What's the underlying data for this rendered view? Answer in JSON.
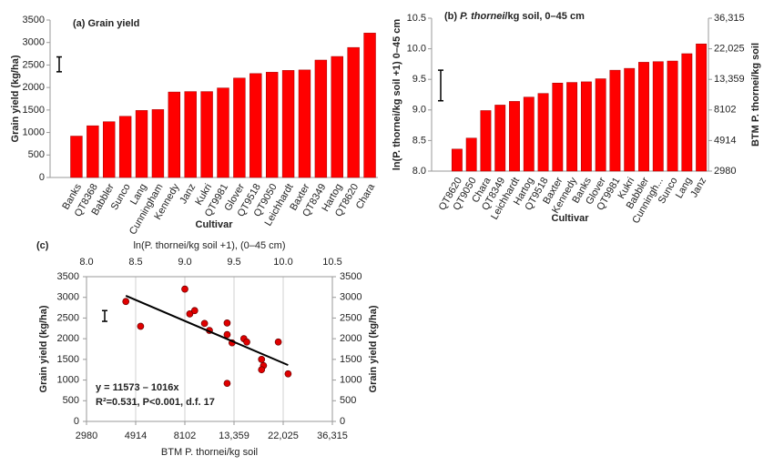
{
  "chart_data": [
    {
      "type": "bar",
      "title": "(a) Grain yield",
      "ylabel": "Grain yield (kg/ha)",
      "xlabel": "Cultivar",
      "categories": [
        "Banks",
        "QT8368",
        "Babbler",
        "Sunco",
        "Lang",
        "Cunningham",
        "Kennedy",
        "Janz",
        "Kukri",
        "QT9981",
        "Glover",
        "QT9518",
        "QT9050",
        "Leichhardt",
        "Baxter",
        "QT8349",
        "Hartog",
        "QT8620",
        "Chara"
      ],
      "values": [
        920,
        1150,
        1240,
        1360,
        1490,
        1510,
        1900,
        1910,
        1910,
        1990,
        2210,
        2310,
        2340,
        2380,
        2390,
        2610,
        2690,
        2890,
        3210
      ],
      "color": "#ff0000",
      "ylim": [
        0,
        3500
      ],
      "yticks": [
        0,
        500,
        1000,
        1500,
        2000,
        2500,
        3000,
        3500
      ],
      "error_bar": {
        "y": 2515,
        "half_length": 165
      }
    },
    {
      "type": "bar",
      "title": {
        "prefix": "(b) ",
        "italic": "P. thornei",
        "suffix": "/kg soil, 0–45 cm"
      },
      "ylabel": "ln(P. thornei/kg soil +1)  0–45 cm",
      "y2label": "BTM P. thornei/kg soil",
      "xlabel": "Cultivar",
      "categories": [
        "QT8620",
        "QT9050",
        "Chara",
        "QT8349",
        "Leichhardt",
        "Hartog",
        "QT9518",
        "Baxter",
        "Kennedy",
        "Banks",
        "Glover",
        "QT9981",
        "Kukri",
        "Babbler",
        "Cunningh...",
        "Sunco",
        "Lang",
        "Janz"
      ],
      "values": [
        8.36,
        8.54,
        8.99,
        9.08,
        9.14,
        9.21,
        9.27,
        9.44,
        9.45,
        9.46,
        9.51,
        9.65,
        9.68,
        9.78,
        9.79,
        9.8,
        9.92,
        10.08
      ],
      "color": "#ff0000",
      "ylim": [
        8,
        10.5
      ],
      "yticks": [
        {
          "value": 8,
          "label": "8.0"
        },
        {
          "value": 8.5,
          "label": "8.5"
        },
        {
          "value": 9,
          "label": "9.0"
        },
        {
          "value": 9.5,
          "label": "9.5"
        },
        {
          "value": 10,
          "label": "10.0"
        },
        {
          "value": 10.5,
          "label": "10.5"
        }
      ],
      "y2scale": "log",
      "y2lim": [
        2980,
        36315
      ],
      "y2ticks": [
        2980,
        4914,
        8102,
        {
          "value": 13359,
          "label": "13,359"
        },
        {
          "value": 22025,
          "label": "22,025"
        },
        {
          "value": 36315,
          "label": "36,315"
        }
      ],
      "error_bar": {
        "y": 9.4,
        "half_length": 0.25
      }
    },
    {
      "type": "scatter",
      "panel_label": "(c)",
      "xlabel": "ln(P. thornei/kg soil +1), (0–45 cm)",
      "x2label": "BTM P. thornei/kg soil",
      "ylabel": "Grain yield (kg/ha)",
      "y2label": "Grain yield (kg/ha)",
      "x": [
        8.4,
        8.55,
        9.0,
        9.05,
        9.1,
        9.2,
        9.25,
        9.43,
        9.43,
        9.48,
        9.43,
        9.6,
        9.63,
        9.78,
        9.8,
        9.78,
        9.95,
        10.05
      ],
      "y": [
        2900,
        2300,
        3200,
        2600,
        2680,
        2370,
        2200,
        2380,
        2100,
        1900,
        920,
        2000,
        1920,
        1500,
        1350,
        1250,
        1920,
        1150
      ],
      "color": "#e00000",
      "xlim": [
        8,
        10.5
      ],
      "xticks": [
        {
          "value": 8,
          "label": "8.0"
        },
        {
          "value": 8.5,
          "label": "8.5"
        },
        {
          "value": 9,
          "label": "9.0"
        },
        {
          "value": 9.5,
          "label": "9.5"
        },
        {
          "value": 10,
          "label": "10.0"
        },
        {
          "value": 10.5,
          "label": "10.5"
        }
      ],
      "x2scale": "log",
      "x2lim": [
        2980,
        36315
      ],
      "x2ticks": [
        2980,
        4914,
        8102,
        {
          "value": 13359,
          "label": "13,359"
        },
        {
          "value": 22025,
          "label": "22,025"
        },
        {
          "value": 36315,
          "label": "36,315"
        }
      ],
      "ylim": [
        0,
        3500
      ],
      "yticks": [
        0,
        500,
        1000,
        1500,
        2000,
        2500,
        3000,
        3500
      ],
      "y2lim": [
        0,
        3500
      ],
      "y2ticks": [
        0,
        500,
        1000,
        1500,
        2000,
        2500,
        3000,
        3500
      ],
      "fit": {
        "intercept": 11573,
        "slope": -1016,
        "x_range": [
          8.4,
          10.05
        ]
      },
      "annotations": [
        "y = 11573 – 1016x",
        "R²=0.531, P<0.001, d.f. 17"
      ],
      "grid": true,
      "error_bar": {
        "y": 2550,
        "half_length": 130
      }
    }
  ]
}
